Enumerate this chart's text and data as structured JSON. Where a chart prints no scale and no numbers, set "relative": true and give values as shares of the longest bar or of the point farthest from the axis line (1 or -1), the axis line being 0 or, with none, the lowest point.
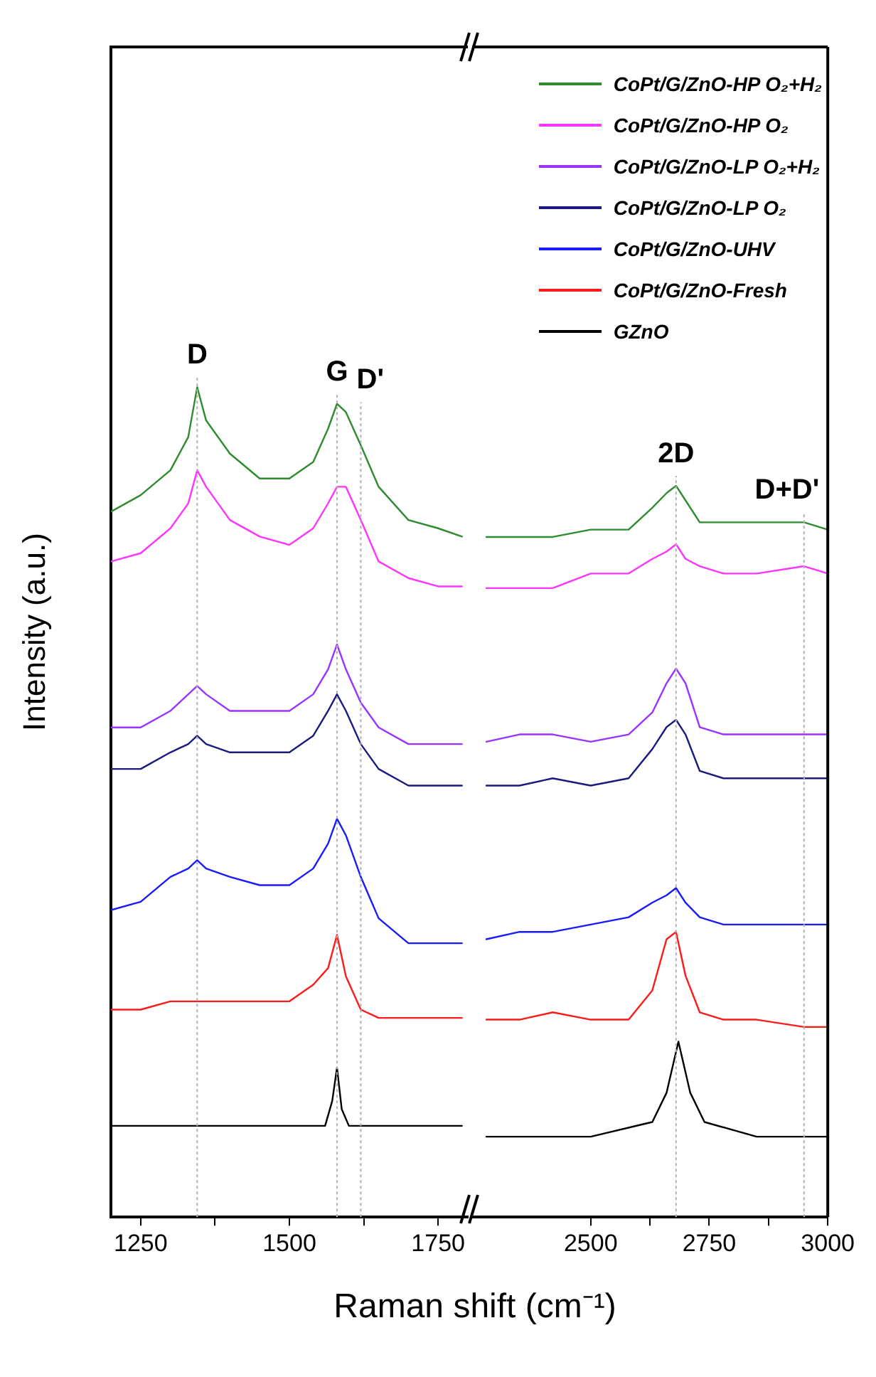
{
  "chart_data": [
    {
      "type": "line",
      "xlabel": "Raman shift (cm⁻¹)",
      "ylabel": "Intensity (a.u.)",
      "relative": true,
      "xlim": [
        1200,
        1800
      ],
      "xticks": [
        1250,
        {
          "value": 1375,
          "label": null
        },
        1500,
        {
          "value": 1625,
          "label": null
        },
        1750
      ],
      "legend": false,
      "marker": "none",
      "line_style": "solid",
      "x": [
        1200,
        1250,
        1300,
        1330,
        1345,
        1360,
        1400,
        1450,
        1500,
        1540,
        1565,
        1580,
        1595,
        1620,
        1650,
        1700,
        1750,
        1790
      ],
      "ref_lines": [
        {
          "axis": "x",
          "value": 1345,
          "label": "D",
          "color": "#b0b0b0",
          "line_style": "dotted"
        },
        {
          "axis": "x",
          "value": 1580,
          "label": "G",
          "color": "#b0b0b0",
          "line_style": "dotted"
        },
        {
          "axis": "x",
          "value": 1620,
          "label": "D'",
          "color": "#b0b0b0",
          "line_style": "dotted"
        }
      ],
      "series": [
        {
          "color": "#2e8b2e",
          "values": [
            0.85,
            0.87,
            0.9,
            0.94,
            1.0,
            0.96,
            0.92,
            0.89,
            0.89,
            0.91,
            0.95,
            0.98,
            0.97,
            0.93,
            0.88,
            0.84,
            0.83,
            0.82
          ]
        },
        {
          "color": "#ff33ff",
          "values": [
            0.79,
            0.8,
            0.83,
            0.86,
            0.9,
            0.88,
            0.84,
            0.82,
            0.81,
            0.83,
            0.86,
            0.88,
            0.88,
            0.84,
            0.79,
            0.77,
            0.76,
            0.76
          ]
        },
        {
          "color": "#9933ff",
          "values": [
            0.59,
            0.59,
            0.61,
            0.63,
            0.64,
            0.63,
            0.61,
            0.61,
            0.61,
            0.63,
            0.66,
            0.69,
            0.66,
            0.62,
            0.59,
            0.57,
            0.57,
            0.57
          ]
        },
        {
          "color": "#1a1a80",
          "values": [
            0.54,
            0.54,
            0.56,
            0.57,
            0.58,
            0.57,
            0.56,
            0.56,
            0.56,
            0.58,
            0.61,
            0.63,
            0.61,
            0.57,
            0.54,
            0.52,
            0.52,
            0.52
          ]
        },
        {
          "color": "#1a1aff",
          "values": [
            0.37,
            0.38,
            0.41,
            0.42,
            0.43,
            0.42,
            0.41,
            0.4,
            0.4,
            0.42,
            0.45,
            0.48,
            0.46,
            0.41,
            0.36,
            0.33,
            0.33,
            0.33
          ]
        },
        {
          "color": "#ff1a1a",
          "values": [
            0.25,
            0.25,
            0.26,
            0.26,
            0.26,
            0.26,
            0.26,
            0.26,
            0.26,
            0.28,
            0.3,
            0.34,
            0.29,
            0.25,
            0.24,
            0.24,
            0.24,
            0.24
          ]
        },
        {
          "color": "#000000",
          "x": [
            1200,
            1300,
            1400,
            1500,
            1560,
            1572,
            1580,
            1588,
            1600,
            1700,
            1790
          ],
          "values": [
            0.11,
            0.11,
            0.11,
            0.11,
            0.11,
            0.14,
            0.18,
            0.13,
            0.11,
            0.11,
            0.11
          ]
        }
      ]
    },
    {
      "type": "line",
      "relative": true,
      "xlim": [
        2250,
        3000
      ],
      "xticks": [
        2500,
        {
          "value": 2625,
          "label": null
        },
        2750,
        {
          "value": 2875,
          "label": null
        },
        3000
      ],
      "legend": "top right",
      "marker": "none",
      "line_style": "solid",
      "x": [
        2280,
        2350,
        2420,
        2500,
        2580,
        2630,
        2660,
        2680,
        2700,
        2730,
        2780,
        2850,
        2950,
        3000
      ],
      "ref_lines": [
        {
          "axis": "x",
          "value": 2680,
          "label": "2D",
          "color": "#b0b0b0",
          "line_style": "dotted"
        },
        {
          "axis": "x",
          "value": 2950,
          "label": "D+D'",
          "color": "#b0b0b0",
          "line_style": "dotted"
        }
      ],
      "series": [
        {
          "name": "CoPt/G/ZnO-HP O₂+H₂",
          "color": "#2e8b2e",
          "values": [
            0.93,
            0.93,
            0.93,
            0.94,
            0.94,
            0.97,
            0.99,
            1.0,
            0.98,
            0.95,
            0.95,
            0.95,
            0.95,
            0.94
          ]
        },
        {
          "name": "CoPt/G/ZnO-HP O₂",
          "color": "#ff33ff",
          "values": [
            0.86,
            0.86,
            0.86,
            0.88,
            0.88,
            0.9,
            0.91,
            0.92,
            0.9,
            0.89,
            0.88,
            0.88,
            0.89,
            0.88
          ]
        },
        {
          "name": "CoPt/G/ZnO-LP O₂+H₂",
          "color": "#9933ff",
          "values": [
            0.65,
            0.66,
            0.66,
            0.65,
            0.66,
            0.69,
            0.73,
            0.75,
            0.73,
            0.67,
            0.66,
            0.66,
            0.66,
            0.66
          ]
        },
        {
          "name": "CoPt/G/ZnO-LP O₂",
          "color": "#1a1a80",
          "values": [
            0.59,
            0.59,
            0.6,
            0.59,
            0.6,
            0.64,
            0.67,
            0.68,
            0.66,
            0.61,
            0.6,
            0.6,
            0.6,
            0.6
          ]
        },
        {
          "name": "CoPt/G/ZnO-UHV",
          "color": "#1a1aff",
          "values": [
            0.38,
            0.39,
            0.39,
            0.4,
            0.41,
            0.43,
            0.44,
            0.45,
            0.43,
            0.41,
            0.4,
            0.4,
            0.4,
            0.4
          ]
        },
        {
          "name": "CoPt/G/ZnO-Fresh",
          "color": "#ff1a1a",
          "values": [
            0.27,
            0.27,
            0.28,
            0.27,
            0.27,
            0.31,
            0.38,
            0.39,
            0.33,
            0.28,
            0.27,
            0.27,
            0.26,
            0.26
          ]
        },
        {
          "name": "GZnO",
          "color": "#000000",
          "x": [
            2280,
            2420,
            2500,
            2630,
            2660,
            2685,
            2710,
            2740,
            2850,
            3000
          ],
          "values": [
            0.11,
            0.11,
            0.11,
            0.13,
            0.17,
            0.24,
            0.17,
            0.13,
            0.11,
            0.11
          ]
        }
      ]
    }
  ]
}
